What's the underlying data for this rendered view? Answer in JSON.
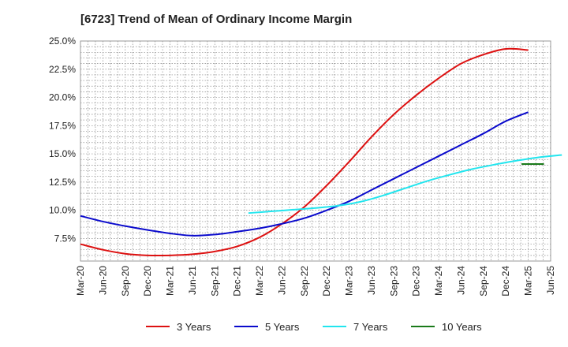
{
  "chart_data": {
    "type": "line",
    "title": "[6723]  Trend of Mean of Ordinary Income Margin",
    "x_categories": [
      "Mar-20",
      "Jun-20",
      "Sep-20",
      "Dec-20",
      "Mar-21",
      "Jun-21",
      "Sep-21",
      "Dec-21",
      "Mar-22",
      "Jun-22",
      "Sep-22",
      "Dec-22",
      "Mar-23",
      "Jun-23",
      "Sep-23",
      "Dec-23",
      "Mar-24",
      "Jun-24",
      "Sep-24",
      "Dec-24",
      "Mar-25",
      "Jun-25"
    ],
    "y_ticks": [
      "7.5%",
      "10.0%",
      "12.5%",
      "15.0%",
      "17.5%",
      "20.0%",
      "22.5%",
      "25.0%"
    ],
    "y_tick_values": [
      7.5,
      10.0,
      12.5,
      15.0,
      17.5,
      20.0,
      22.5,
      25.0
    ],
    "ylim": [
      5.5,
      25.0
    ],
    "grid": true,
    "legend_position": "bottom",
    "series": [
      {
        "name": "3 Years",
        "color": "#dd1111",
        "start_index": 0,
        "values": [
          7.0,
          6.5,
          6.15,
          6.0,
          6.0,
          6.1,
          6.35,
          6.8,
          7.6,
          8.8,
          10.3,
          12.2,
          14.3,
          16.5,
          18.5,
          20.2,
          21.7,
          23.0,
          23.8,
          24.3,
          24.2
        ]
      },
      {
        "name": "5 Years",
        "color": "#0a0acc",
        "start_index": 0,
        "values": [
          9.5,
          9.0,
          8.6,
          8.25,
          7.95,
          7.75,
          7.85,
          8.1,
          8.4,
          8.8,
          9.3,
          10.0,
          10.8,
          11.8,
          12.8,
          13.8,
          14.8,
          15.8,
          16.8,
          17.9,
          18.7
        ]
      },
      {
        "name": "7 Years",
        "color": "#22e5ee",
        "start_index": 7.5,
        "values": [
          9.75,
          9.9,
          10.05,
          10.2,
          10.4,
          10.75,
          11.3,
          11.95,
          12.6,
          13.15,
          13.65,
          14.05,
          14.4,
          14.7,
          14.9
        ]
      },
      {
        "name": "10 Years",
        "color": "#1a7a1a",
        "start_index": 19.7,
        "values": [
          14.1,
          14.1
        ]
      }
    ]
  }
}
